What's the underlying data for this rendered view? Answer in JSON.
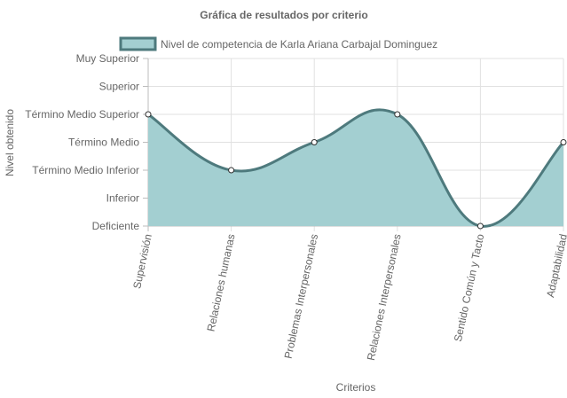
{
  "chart_data": {
    "type": "area",
    "title": "Gráfica de resultados por criterio",
    "xlabel": "Criterios",
    "ylabel": "Nivel obtenido",
    "y_levels": [
      "Deficiente",
      "Inferior",
      "Término Medio Inferior",
      "Término Medio",
      "Término Medio Superior",
      "Superior",
      "Muy Superior"
    ],
    "categories": [
      "Supervisión",
      "Relaciones humanas",
      "Problemas Interpersonales",
      "Relaciones Interpersonales",
      "Sentido Común y Tacto",
      "Adaptabilidad"
    ],
    "series": [
      {
        "name": "Nivel de competencia de Karla Ariana Carbajal Dominguez",
        "values": [
          "Término Medio Superior",
          "Término Medio Inferior",
          "Término Medio",
          "Término Medio Superior",
          "Deficiente",
          "Término Medio"
        ],
        "fill_color": "#a3cfd1",
        "line_color": "#4e7a7d"
      }
    ],
    "legend_position": "top",
    "grid": true
  }
}
